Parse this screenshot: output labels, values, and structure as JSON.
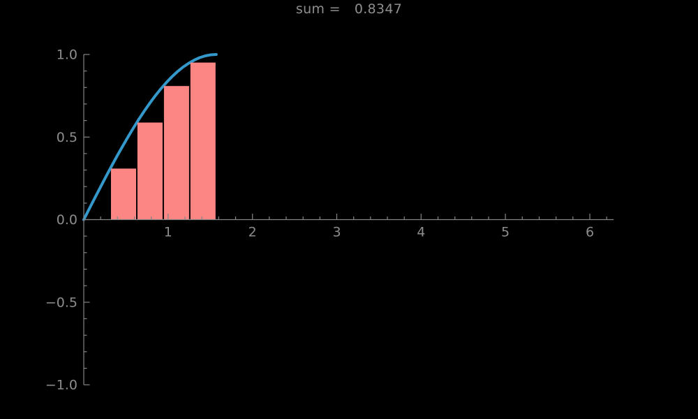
{
  "chart_data": {
    "type": "composite",
    "subtype": "line-with-riemann-bars",
    "title_label": "sum =",
    "title_value": "0.8347",
    "sum": 0.8347,
    "background_color": "#000000",
    "title_color": "#8e8e8e",
    "axis_color": "#858585",
    "tick_label_color": "#8d8d8d",
    "tick_label_font_size": 19,
    "legend": "none",
    "grid": "off",
    "axes": {
      "x": {
        "range": [
          0,
          6.2832
        ],
        "minor_step": 0.2,
        "major_ticks": [
          {
            "value": 1,
            "label": "1"
          },
          {
            "value": 2,
            "label": "2"
          },
          {
            "value": 3,
            "label": "3"
          },
          {
            "value": 4,
            "label": "4"
          },
          {
            "value": 5,
            "label": "5"
          },
          {
            "value": 6,
            "label": "6"
          }
        ]
      },
      "y": {
        "range": [
          -1,
          1
        ],
        "minor_step": 0.1,
        "major_ticks": [
          {
            "value": 1.0,
            "label": "1.0"
          },
          {
            "value": 0.5,
            "label": "0.5"
          },
          {
            "value": 0.0,
            "label": "0.0"
          },
          {
            "value": -0.5,
            "label": "−0.5"
          },
          {
            "value": -1.0,
            "label": "−1.0"
          }
        ]
      }
    },
    "curve": {
      "name": "sin(x)",
      "color": "#3498cb",
      "stroke_width": 4,
      "x_domain": [
        0,
        1.5708
      ],
      "points": [
        [
          0.0,
          0.0
        ],
        [
          0.0654,
          0.0654
        ],
        [
          0.1309,
          0.1305
        ],
        [
          0.1963,
          0.1951
        ],
        [
          0.2618,
          0.2588
        ],
        [
          0.3272,
          0.3214
        ],
        [
          0.3927,
          0.3827
        ],
        [
          0.4581,
          0.4423
        ],
        [
          0.5236,
          0.5
        ],
        [
          0.589,
          0.5556
        ],
        [
          0.6545,
          0.6088
        ],
        [
          0.7199,
          0.6593
        ],
        [
          0.7854,
          0.7071
        ],
        [
          0.8508,
          0.7518
        ],
        [
          0.9163,
          0.7934
        ],
        [
          0.9817,
          0.8315
        ],
        [
          1.0472,
          0.866
        ],
        [
          1.1126,
          0.8969
        ],
        [
          1.1781,
          0.9239
        ],
        [
          1.2435,
          0.9469
        ],
        [
          1.309,
          0.9659
        ],
        [
          1.3744,
          0.9808
        ],
        [
          1.4399,
          0.9914
        ],
        [
          1.5053,
          0.9979
        ],
        [
          1.5708,
          1.0
        ]
      ]
    },
    "bars": {
      "name": "left-riemann-rectangles",
      "color": "#fb8684",
      "items": [
        {
          "x0": 0.3142,
          "x1": 0.6283,
          "height": 0.309
        },
        {
          "x0": 0.6283,
          "x1": 0.9425,
          "height": 0.5878
        },
        {
          "x0": 0.9425,
          "x1": 1.2566,
          "height": 0.809
        },
        {
          "x0": 1.2566,
          "x1": 1.5708,
          "height": 0.9511
        }
      ]
    }
  }
}
